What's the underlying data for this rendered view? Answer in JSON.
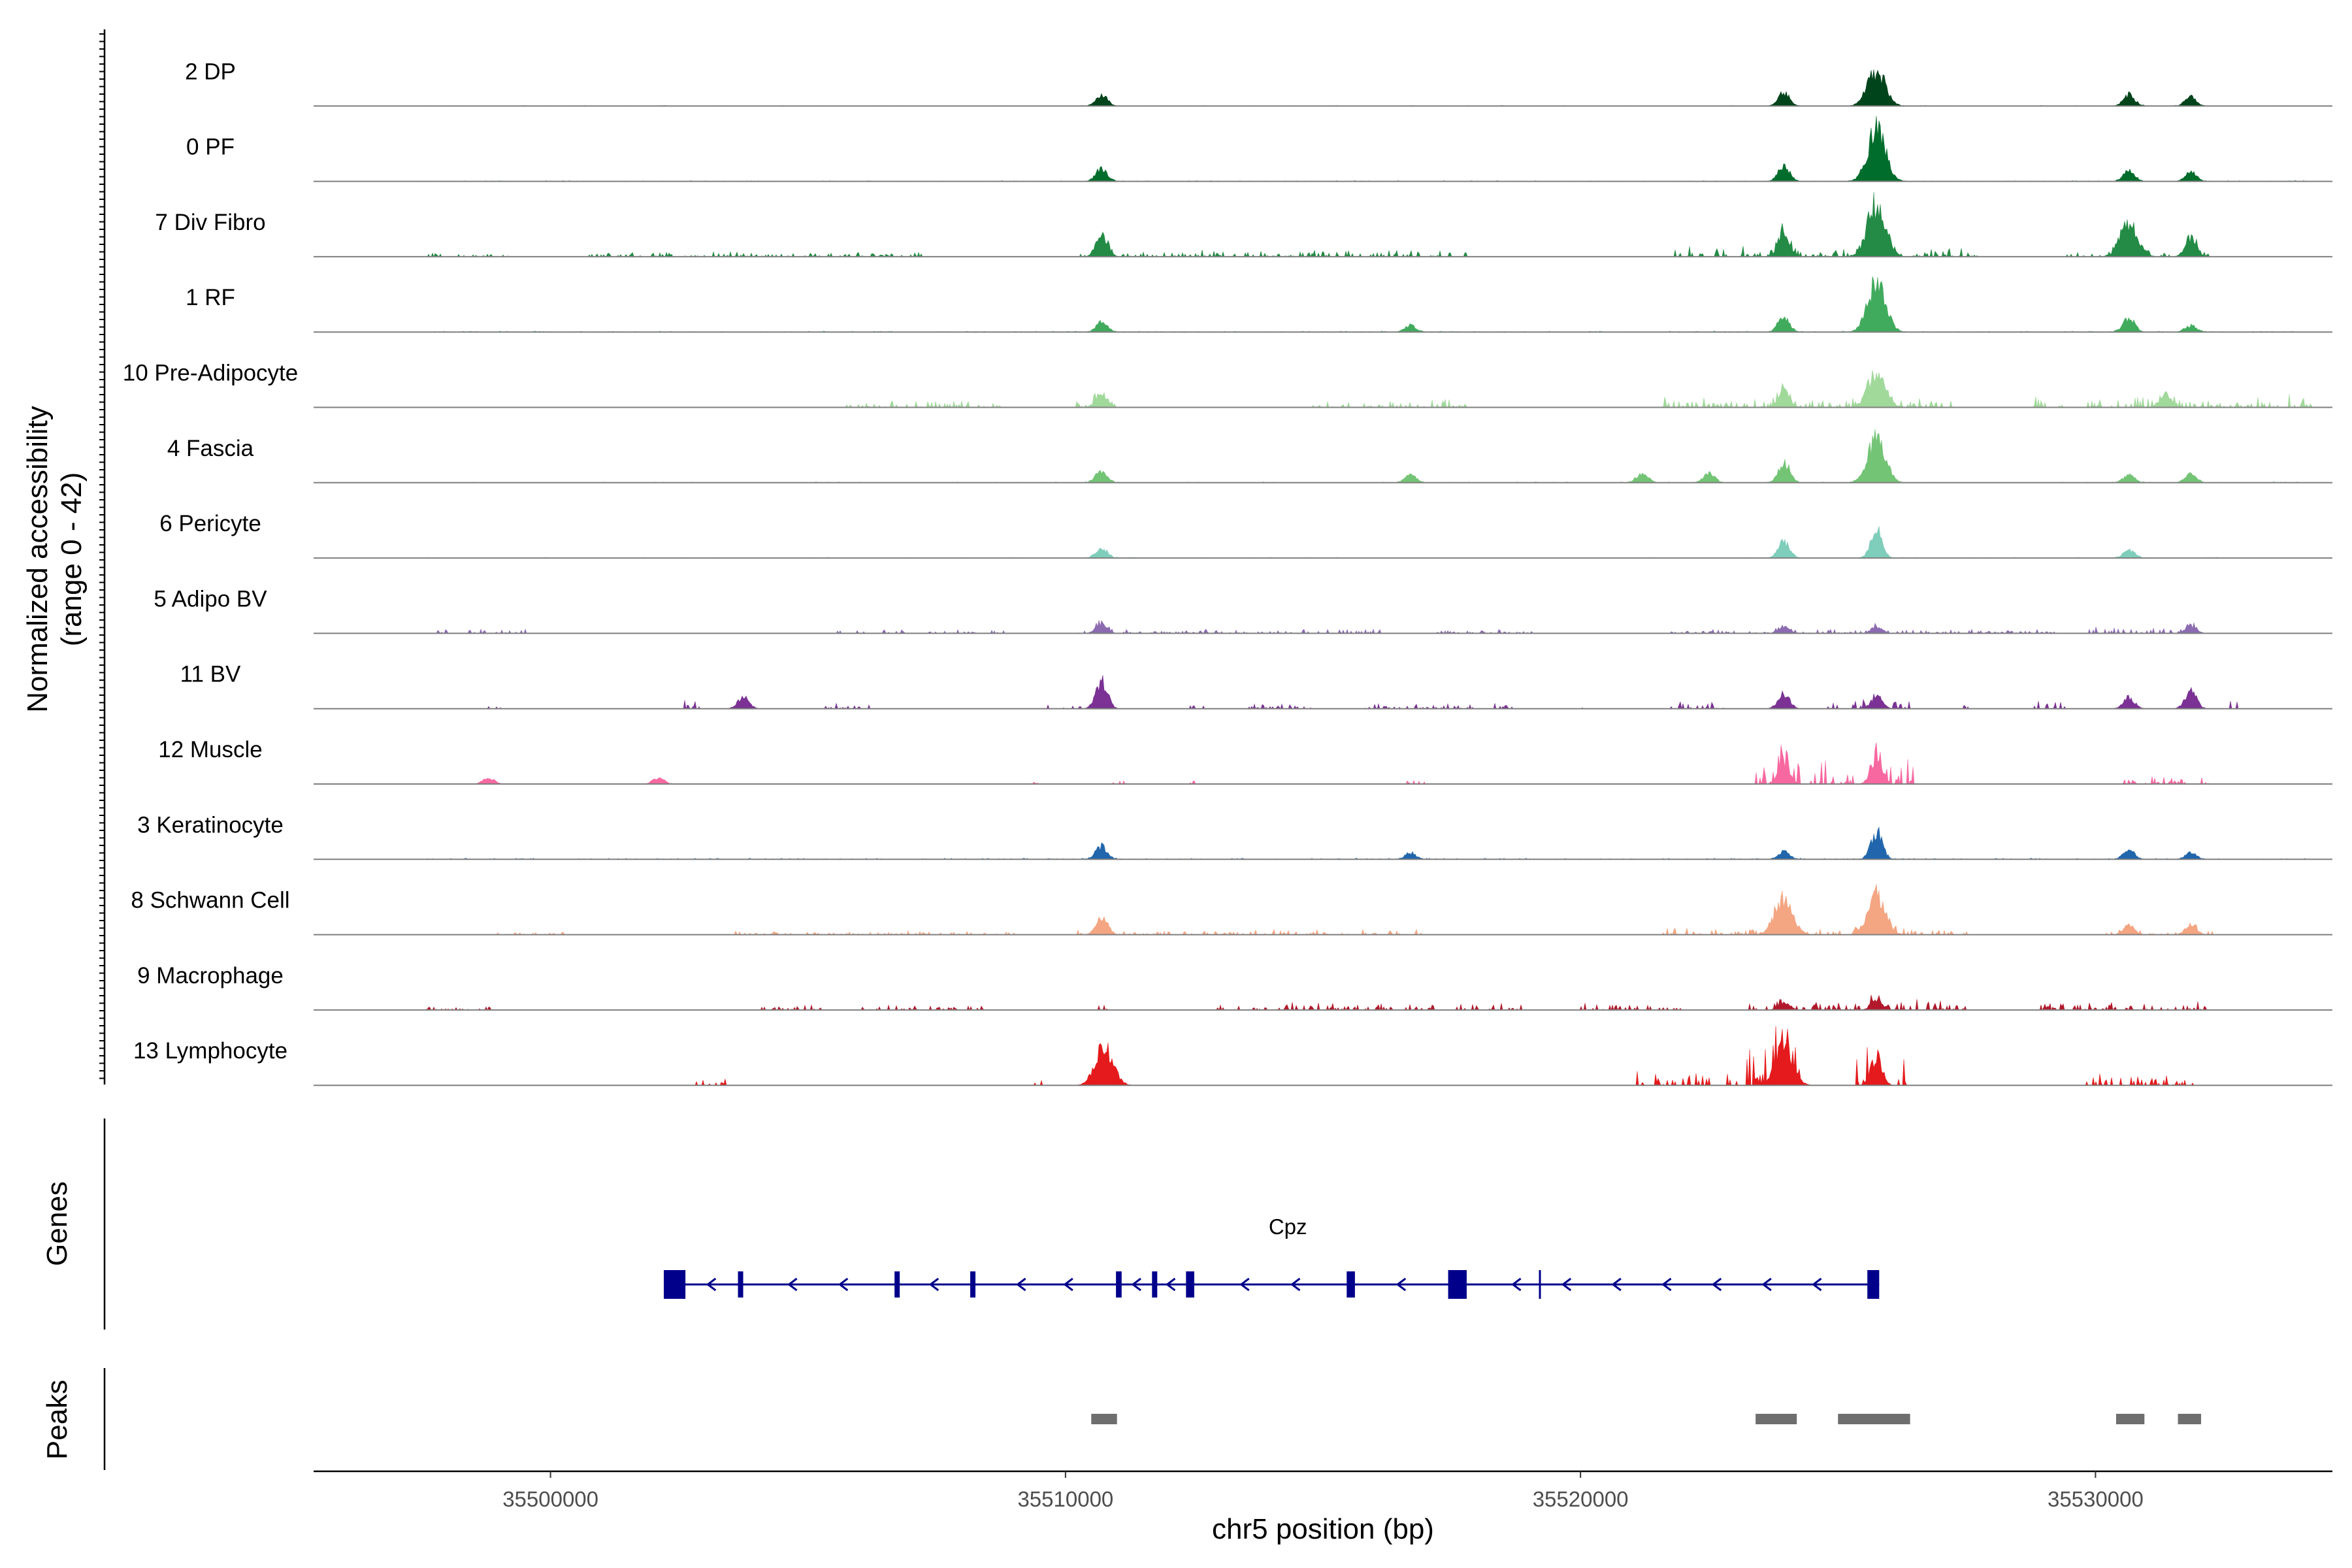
{
  "chart_data": {
    "type": "area",
    "title": "",
    "xlabel": "chr5 position (bp)",
    "ylabel": "Normalized accessibility",
    "ylabel_range": "(range 0 - 42)",
    "ylim": [
      0,
      42
    ],
    "xlim": [
      35495400,
      35534600
    ],
    "x_ticks": [
      35500000,
      35510000,
      35520000,
      35530000
    ],
    "x_tick_labels": [
      "35500000",
      "35510000",
      "35520000",
      "35530000"
    ],
    "tracks": [
      {
        "name": "2 DP",
        "color": "#00441b",
        "peaks": [
          [
            35510700,
            9
          ],
          [
            35523950,
            10
          ],
          [
            35525750,
            28
          ],
          [
            35530650,
            9
          ],
          [
            35531850,
            7
          ]
        ],
        "noise": [
          [
            35497500,
            35534100,
            0.3
          ]
        ]
      },
      {
        "name": "0 PF",
        "color": "#006d2c",
        "peaks": [
          [
            35510700,
            10
          ],
          [
            35523950,
            12
          ],
          [
            35525750,
            41
          ],
          [
            35530650,
            8
          ],
          [
            35531850,
            7
          ]
        ],
        "noise": [
          [
            35497500,
            35534100,
            0.4
          ]
        ]
      },
      {
        "name": "7 Div Fibro",
        "color": "#238b45",
        "peaks": [
          [
            35510700,
            16
          ],
          [
            35523950,
            20
          ],
          [
            35525750,
            42
          ],
          [
            35530650,
            26
          ],
          [
            35531850,
            14
          ]
        ],
        "noise": [
          [
            35497500,
            35499200,
            2
          ],
          [
            35500700,
            35507200,
            2.5
          ],
          [
            35510200,
            35517800,
            3.5
          ],
          [
            35521800,
            35527800,
            5
          ],
          [
            35529400,
            35532200,
            3
          ]
        ]
      },
      {
        "name": "1 RF",
        "color": "#41ab5d",
        "peaks": [
          [
            35510700,
            8
          ],
          [
            35516700,
            5
          ],
          [
            35523950,
            12
          ],
          [
            35525750,
            40
          ],
          [
            35530650,
            11
          ],
          [
            35531850,
            5
          ]
        ],
        "noise": [
          [
            35497500,
            35534100,
            0.5
          ]
        ]
      },
      {
        "name": "10 Pre-Adipocyte",
        "color": "#a1d99b",
        "peaks": [
          [
            35510700,
            11
          ],
          [
            35523950,
            13
          ],
          [
            35525750,
            26
          ],
          [
            35531350,
            10
          ]
        ],
        "noise": [
          [
            35505500,
            35508800,
            4
          ],
          [
            35510200,
            35511000,
            4
          ],
          [
            35514800,
            35517800,
            4
          ],
          [
            35521600,
            35527200,
            5
          ],
          [
            35528800,
            35534200,
            6
          ]
        ]
      },
      {
        "name": "4 Fascia",
        "color": "#74c476",
        "peaks": [
          [
            35510700,
            10
          ],
          [
            35516700,
            6
          ],
          [
            35521200,
            7
          ],
          [
            35522500,
            7
          ],
          [
            35523950,
            16
          ],
          [
            35525750,
            36
          ],
          [
            35530650,
            6
          ],
          [
            35531850,
            7
          ]
        ],
        "noise": [
          [
            35497500,
            35534100,
            0.5
          ]
        ]
      },
      {
        "name": "6 Pericyte",
        "color": "#7fcdbb",
        "peaks": [
          [
            35510700,
            8
          ],
          [
            35523950,
            13
          ],
          [
            35525750,
            22
          ],
          [
            35530650,
            6
          ]
        ],
        "noise": [
          [
            35497500,
            35534100,
            0.4
          ]
        ]
      },
      {
        "name": "5 Adipo BV",
        "color": "#8c6bb1",
        "peaks": [
          [
            35510700,
            7
          ],
          [
            35523950,
            5
          ],
          [
            35525750,
            5
          ],
          [
            35531850,
            6
          ]
        ],
        "noise": [
          [
            35497800,
            35499600,
            2
          ],
          [
            35505500,
            35508800,
            2
          ],
          [
            35510200,
            35516200,
            2.5
          ],
          [
            35517200,
            35519200,
            2
          ],
          [
            35521600,
            35529200,
            2
          ],
          [
            35529800,
            35532100,
            3.5
          ]
        ]
      },
      {
        "name": "11 BV",
        "color": "#7b3294",
        "peaks": [
          [
            35503750,
            9
          ],
          [
            35510700,
            22
          ],
          [
            35523950,
            12
          ],
          [
            35525750,
            9
          ],
          [
            35530650,
            9
          ],
          [
            35531850,
            14
          ]
        ],
        "noise": [
          [
            35498700,
            35499100,
            2
          ],
          [
            35502600,
            35502900,
            4
          ],
          [
            35505300,
            35506200,
            3
          ],
          [
            35509500,
            35510300,
            3
          ],
          [
            35512300,
            35512700,
            5
          ],
          [
            35513500,
            35514800,
            3
          ],
          [
            35515800,
            35518800,
            3
          ],
          [
            35520000,
            35520300,
            3
          ],
          [
            35521700,
            35522800,
            4
          ],
          [
            35524800,
            35526400,
            6
          ],
          [
            35527300,
            35527800,
            2
          ],
          [
            35528800,
            35529500,
            4
          ],
          [
            35532500,
            35532800,
            4
          ]
        ]
      },
      {
        "name": "12 Muscle",
        "color": "#f768a1",
        "peaks": [
          [
            35498800,
            5
          ],
          [
            35502100,
            5
          ],
          [
            35523950,
            16
          ],
          [
            35525750,
            20
          ]
        ],
        "noise": [
          [
            35509300,
            35509700,
            2
          ],
          [
            35510700,
            35511200,
            3
          ],
          [
            35512400,
            35512700,
            4
          ],
          [
            35516600,
            35517000,
            3
          ],
          [
            35523400,
            35526500,
            12
          ],
          [
            35530500,
            35532200,
            5
          ]
        ]
      },
      {
        "name": "3 Keratinocyte",
        "color": "#2166ac",
        "peaks": [
          [
            35510700,
            10
          ],
          [
            35516700,
            5
          ],
          [
            35523950,
            6
          ],
          [
            35525750,
            22
          ],
          [
            35530650,
            7
          ],
          [
            35531850,
            5
          ]
        ],
        "noise": [
          [
            35497500,
            35534100,
            0.6
          ]
        ]
      },
      {
        "name": "8 Schwann Cell",
        "color": "#f4a582",
        "peaks": [
          [
            35510700,
            13
          ],
          [
            35523950,
            28
          ],
          [
            35525750,
            30
          ],
          [
            35530650,
            7
          ],
          [
            35531850,
            7
          ]
        ],
        "noise": [
          [
            35498800,
            35500300,
            1.5
          ],
          [
            35503300,
            35509000,
            2
          ],
          [
            35510200,
            35517000,
            2.5
          ],
          [
            35521600,
            35527500,
            4
          ],
          [
            35530200,
            35532300,
            2.5
          ]
        ]
      },
      {
        "name": "9 Macrophage",
        "color": "#b2182b",
        "peaks": [
          [
            35523950,
            6
          ],
          [
            35525750,
            8
          ]
        ],
        "noise": [
          [
            35497500,
            35498900,
            2
          ],
          [
            35504100,
            35505300,
            3
          ],
          [
            35506000,
            35508400,
            3.5
          ],
          [
            35510600,
            35511100,
            2.5
          ],
          [
            35512800,
            35518900,
            3.5
          ],
          [
            35520000,
            35522000,
            4
          ],
          [
            35523200,
            35527500,
            5
          ],
          [
            35528900,
            35532200,
            4
          ]
        ]
      },
      {
        "name": "13 Lymphocyte",
        "color": "#e41a1c",
        "peaks": [
          [
            35510750,
            30
          ],
          [
            35523950,
            30
          ],
          [
            35525750,
            20
          ]
        ],
        "noise": [
          [
            35502800,
            35503400,
            5
          ],
          [
            35509400,
            35509700,
            7
          ],
          [
            35512800,
            35512900,
            8
          ],
          [
            35521100,
            35522500,
            8
          ],
          [
            35522800,
            35524300,
            20
          ],
          [
            35525300,
            35526400,
            15
          ],
          [
            35529800,
            35531900,
            6
          ]
        ]
      }
    ],
    "genes": {
      "title": "Genes",
      "name": "Cpz",
      "start": 35502200,
      "end": 35525800,
      "strand": "-",
      "exons": [
        [
          35502200,
          35502620
        ],
        [
          35503640,
          35503720
        ],
        [
          35506680,
          35506760
        ],
        [
          35508150,
          35508230
        ],
        [
          35510980,
          35511090
        ],
        [
          35511680,
          35511760
        ],
        [
          35512340,
          35512500
        ],
        [
          35515460,
          35515620
        ],
        [
          35517430,
          35517790
        ],
        [
          35525570,
          35525800
        ]
      ],
      "color": "#00008b"
    },
    "peaks": {
      "title": "Peaks",
      "color": "#6e6e6e",
      "regions": [
        [
          35510500,
          35511000
        ],
        [
          35523400,
          35524200
        ],
        [
          35525000,
          35526400
        ],
        [
          35530400,
          35530950
        ],
        [
          35531600,
          35532050
        ]
      ]
    }
  }
}
